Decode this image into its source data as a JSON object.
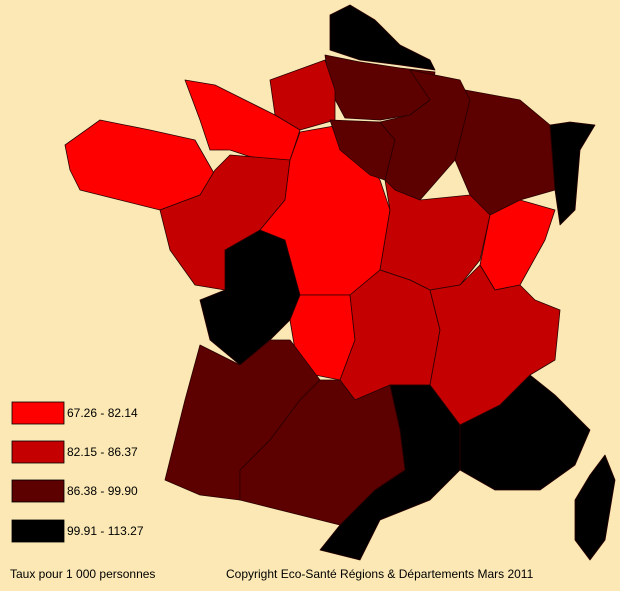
{
  "legend": {
    "items": [
      {
        "label": "67.26 - 82.14",
        "color": "#ff0000"
      },
      {
        "label": "82.15 - 86.37",
        "color": "#c40000"
      },
      {
        "label": "86.38 - 99.90",
        "color": "#5c0000"
      },
      {
        "label": "99.91 - 113.27",
        "color": "#000000"
      }
    ]
  },
  "footer": {
    "note": "Taux pour 1 000 personnes",
    "copyright": "Copyright Eco-Santé Régions & Départements Mars 2011"
  }
}
